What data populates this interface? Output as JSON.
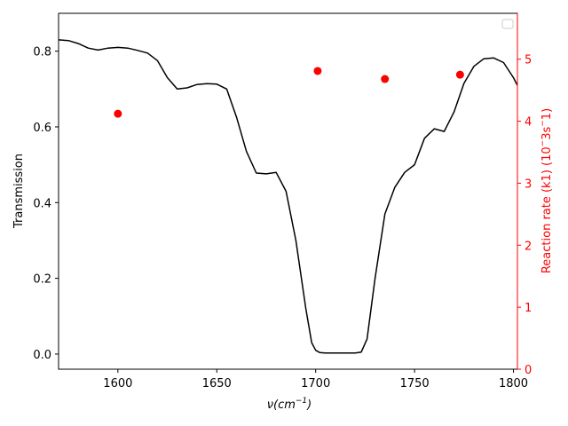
{
  "chart_data": {
    "type": "line",
    "xlabel_parts": {
      "base": "ν(",
      "unit": "cm",
      "exp": "−1",
      "close": ")"
    },
    "ylabel_left": "Transmission",
    "ylabel_right_parts": {
      "pre": "Reaction rate (k1) (10",
      "sup1": "−",
      "mid": "3s",
      "sup2": "−",
      "post": "1)"
    },
    "xlim": [
      1570,
      1802
    ],
    "ylim_left": [
      -0.04,
      0.9
    ],
    "ylim_right": [
      0,
      5.74
    ],
    "x_ticks": [
      1600,
      1650,
      1700,
      1750,
      1800
    ],
    "y_ticks_left": [
      0.0,
      0.2,
      0.4,
      0.6,
      0.8
    ],
    "y_ticks_right": [
      0,
      1,
      2,
      3,
      4,
      5
    ],
    "legend": {
      "placement": "top-right",
      "entries": []
    },
    "series": [
      {
        "axis": "left",
        "style": "line",
        "color": "#000000",
        "x": [
          1570,
          1575,
          1580,
          1585,
          1590,
          1595,
          1600,
          1605,
          1610,
          1615,
          1620,
          1625,
          1630,
          1635,
          1640,
          1645,
          1650,
          1655,
          1660,
          1665,
          1670,
          1675,
          1680,
          1685,
          1690,
          1695,
          1698,
          1700,
          1702,
          1705,
          1710,
          1715,
          1720,
          1723,
          1726,
          1730,
          1735,
          1740,
          1745,
          1750,
          1755,
          1760,
          1765,
          1770,
          1775,
          1780,
          1785,
          1790,
          1795,
          1800,
          1802
        ],
        "y": [
          0.83,
          0.828,
          0.82,
          0.808,
          0.803,
          0.808,
          0.81,
          0.808,
          0.802,
          0.795,
          0.775,
          0.73,
          0.7,
          0.703,
          0.712,
          0.714,
          0.713,
          0.7,
          0.625,
          0.535,
          0.478,
          0.476,
          0.48,
          0.43,
          0.3,
          0.12,
          0.03,
          0.01,
          0.004,
          0.003,
          0.003,
          0.003,
          0.003,
          0.005,
          0.04,
          0.2,
          0.37,
          0.44,
          0.48,
          0.5,
          0.57,
          0.595,
          0.588,
          0.64,
          0.715,
          0.76,
          0.78,
          0.782,
          0.77,
          0.73,
          0.71
        ]
      },
      {
        "axis": "right",
        "style": "scatter",
        "color": "#ff0000",
        "x": [
          1600,
          1701,
          1735,
          1773
        ],
        "y": [
          4.12,
          4.81,
          4.68,
          4.75
        ]
      }
    ]
  }
}
